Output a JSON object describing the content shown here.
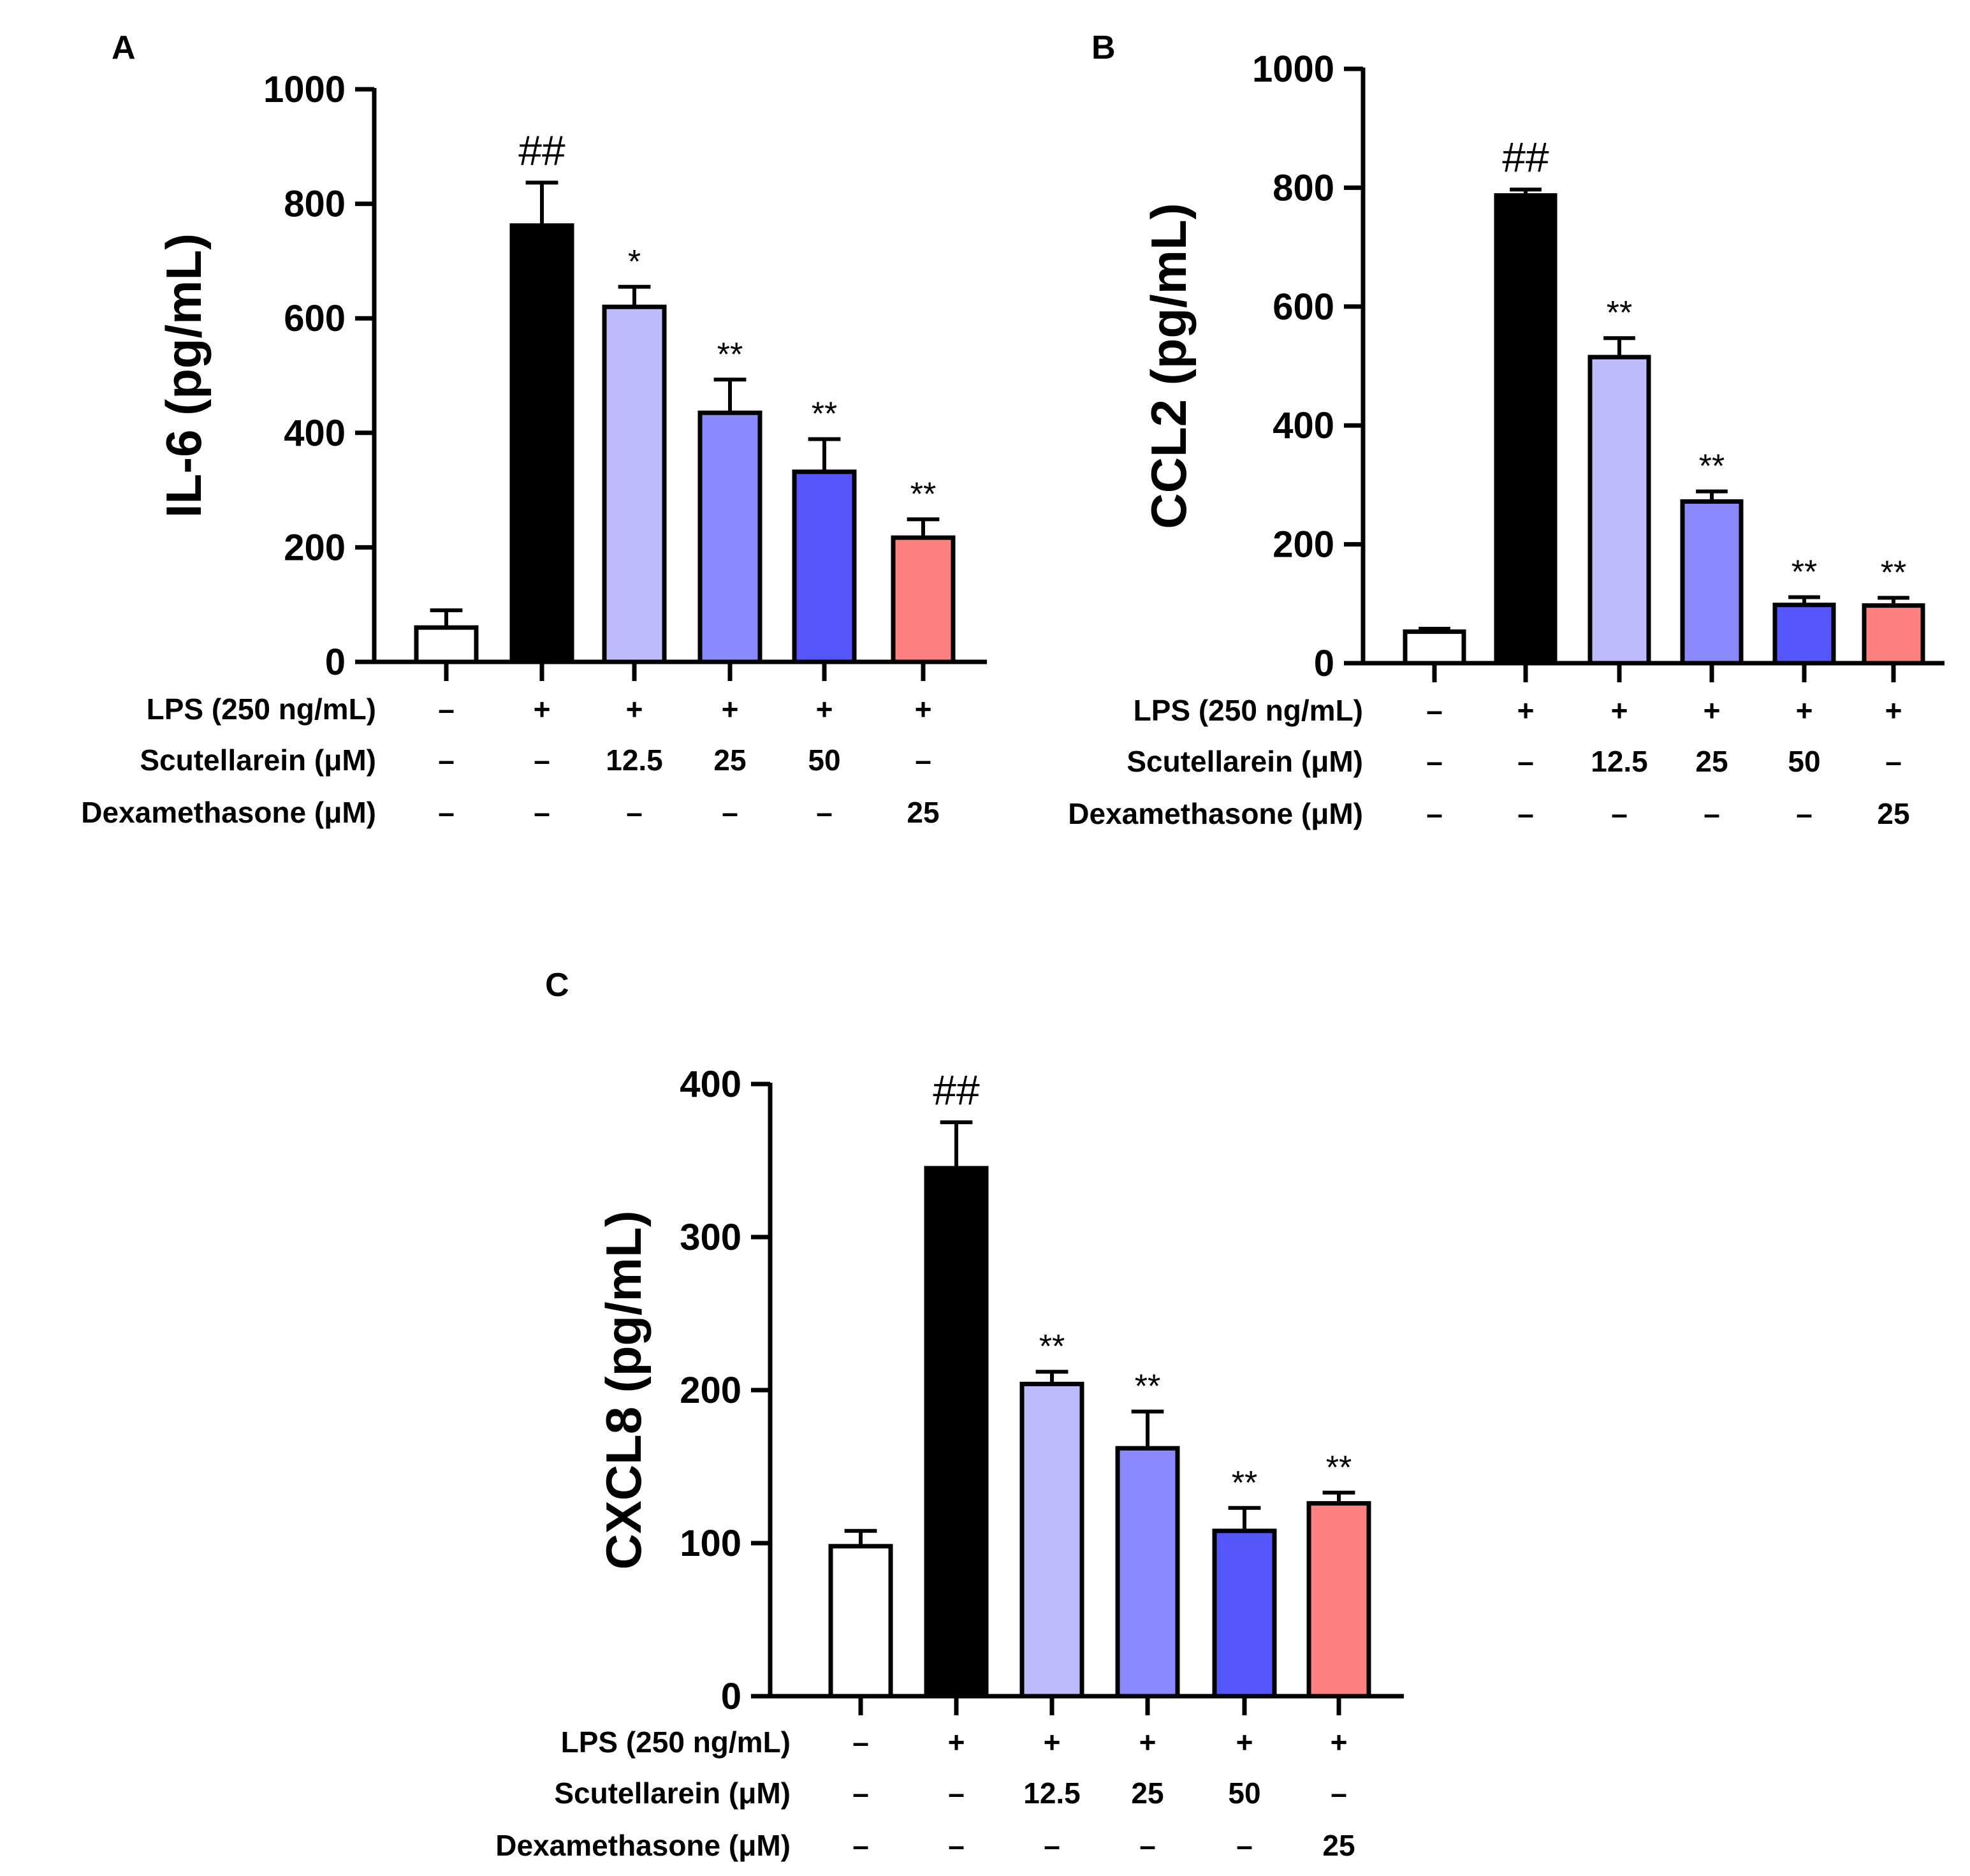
{
  "colors": {
    "bar_fills": [
      "#ffffff",
      "#000000",
      "#bdbdfd",
      "#8a8afd",
      "#5656fd",
      "#fe8080"
    ],
    "stroke": "#000000"
  },
  "condition_labels": {
    "row_labels": [
      "LPS (250 ng/mL)",
      "Scutellarein (μM)",
      "Dexamethasone (μM)"
    ],
    "rows": [
      [
        "–",
        "+",
        "+",
        "+",
        "+",
        "+"
      ],
      [
        "–",
        "–",
        "12.5",
        "25",
        "50",
        "–"
      ],
      [
        "–",
        "–",
        "–",
        "–",
        "–",
        "25"
      ]
    ]
  },
  "chart_data": [
    {
      "panel": "A",
      "type": "bar",
      "ylabel": "IL-6 (pg/mL)",
      "ylim": [
        0,
        1000
      ],
      "yticks": [
        "0",
        "200",
        "400",
        "600",
        "800",
        "1000"
      ],
      "values": [
        60,
        762,
        620,
        435,
        332,
        217
      ],
      "errors": [
        30,
        75,
        35,
        58,
        57,
        32
      ],
      "annotations": [
        "",
        "##",
        "*",
        "**",
        "**",
        "**"
      ]
    },
    {
      "panel": "B",
      "type": "bar",
      "ylabel": "CCL2 (pg/mL)",
      "ylim": [
        0,
        1000
      ],
      "yticks": [
        "0",
        "200",
        "400",
        "600",
        "800",
        "1000"
      ],
      "values": [
        53,
        787,
        515,
        272,
        98,
        97
      ],
      "errors": [
        5,
        10,
        32,
        17,
        13,
        13
      ],
      "annotations": [
        "",
        "##",
        "**",
        "**",
        "**",
        "**"
      ]
    },
    {
      "panel": "C",
      "type": "bar",
      "ylabel": "CXCL8 (pg/mL)",
      "ylim": [
        0,
        400
      ],
      "yticks": [
        "0",
        "100",
        "200",
        "300",
        "400"
      ],
      "values": [
        98,
        345,
        204,
        162,
        108,
        126
      ],
      "errors": [
        10,
        30,
        8,
        24,
        15,
        7
      ],
      "annotations": [
        "",
        "##",
        "**",
        "**",
        "**",
        "**"
      ]
    }
  ]
}
